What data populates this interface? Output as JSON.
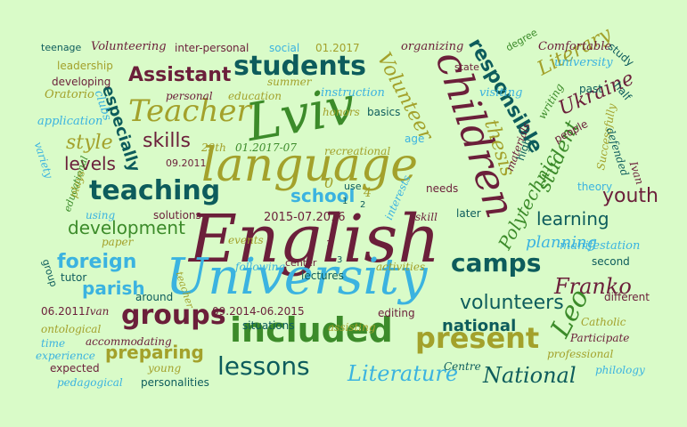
{
  "palette": {
    "background": "#d9fbc8",
    "maroon": "#6b1f3a",
    "olive": "#a3a12b",
    "green": "#3c8b2a",
    "teal": "#0d5c5c",
    "sky": "#3bb3e0"
  },
  "words": [
    {
      "text": "English",
      "color": "maroon"
    },
    {
      "text": "language",
      "color": "olive"
    },
    {
      "text": "University",
      "color": "sky"
    },
    {
      "text": "Lviv",
      "color": "green"
    },
    {
      "text": "children",
      "color": "maroon"
    },
    {
      "text": "included",
      "color": "green"
    },
    {
      "text": "Teacher",
      "color": "olive"
    },
    {
      "text": "students",
      "color": "teal"
    },
    {
      "text": "teaching",
      "color": "teal"
    },
    {
      "text": "present",
      "color": "olive"
    },
    {
      "text": "lessons",
      "color": "teal"
    },
    {
      "text": "groups",
      "color": "maroon"
    },
    {
      "text": "camps",
      "color": "teal"
    },
    {
      "text": "Assistant",
      "color": "maroon"
    },
    {
      "text": "Literature",
      "color": "sky"
    },
    {
      "text": "National",
      "color": "teal"
    },
    {
      "text": "responsible",
      "color": "teal"
    },
    {
      "text": "Volunteer",
      "color": "olive"
    },
    {
      "text": "Literary",
      "color": "olive"
    },
    {
      "text": "Ukraine",
      "color": "maroon"
    },
    {
      "text": "thesis",
      "color": "olive"
    },
    {
      "text": "student",
      "color": "green"
    },
    {
      "text": "Polytechnic",
      "color": "green"
    },
    {
      "text": "Franko",
      "color": "maroon"
    },
    {
      "text": "Leo",
      "color": "green"
    },
    {
      "text": "foreign",
      "color": "sky"
    },
    {
      "text": "development",
      "color": "green"
    },
    {
      "text": "volunteers",
      "color": "teal"
    },
    {
      "text": "national",
      "color": "teal"
    },
    {
      "text": "preparing",
      "color": "olive"
    },
    {
      "text": "learning",
      "color": "teal"
    },
    {
      "text": "planning",
      "color": "sky"
    },
    {
      "text": "youth",
      "color": "maroon"
    },
    {
      "text": "skills",
      "color": "maroon"
    },
    {
      "text": "especially",
      "color": "teal"
    },
    {
      "text": "style",
      "color": "olive"
    },
    {
      "text": "levels",
      "color": "maroon"
    },
    {
      "text": "parish",
      "color": "sky"
    },
    {
      "text": "school",
      "color": "sky"
    },
    {
      "text": "Volunteering",
      "color": "maroon"
    },
    {
      "text": "teenage",
      "color": "teal"
    },
    {
      "text": "inter-personal",
      "color": "maroon"
    },
    {
      "text": "social",
      "color": "sky"
    },
    {
      "text": "01.2017",
      "color": "olive"
    },
    {
      "text": "organizing",
      "color": "maroon"
    },
    {
      "text": "degree",
      "color": "green"
    },
    {
      "text": "Comfortable",
      "color": "maroon"
    },
    {
      "text": "study",
      "color": "teal"
    },
    {
      "text": "university",
      "color": "sky"
    },
    {
      "text": "leadership",
      "color": "olive"
    },
    {
      "text": "developing",
      "color": "maroon"
    },
    {
      "text": "summer",
      "color": "olive"
    },
    {
      "text": "state",
      "color": "maroon"
    },
    {
      "text": "Oratorio",
      "color": "olive"
    },
    {
      "text": "clubs",
      "color": "sky"
    },
    {
      "text": "personal",
      "color": "maroon"
    },
    {
      "text": "education",
      "color": "olive"
    },
    {
      "text": "instruction",
      "color": "sky"
    },
    {
      "text": "visiting",
      "color": "sky"
    },
    {
      "text": "past",
      "color": "teal"
    },
    {
      "text": "half",
      "color": "teal"
    },
    {
      "text": "application",
      "color": "sky"
    },
    {
      "text": "honors",
      "color": "olive"
    },
    {
      "text": "basics",
      "color": "teal"
    },
    {
      "text": "writing",
      "color": "green"
    },
    {
      "text": "people",
      "color": "maroon"
    },
    {
      "text": "Successfully",
      "color": "olive"
    },
    {
      "text": "defended",
      "color": "teal"
    },
    {
      "text": "Ivan",
      "color": "maroon"
    },
    {
      "text": "variety",
      "color": "sky"
    },
    {
      "text": "29th",
      "color": "olive"
    },
    {
      "text": "01.2017-07",
      "color": "green"
    },
    {
      "text": "recreational",
      "color": "olive"
    },
    {
      "text": "age",
      "color": "sky"
    },
    {
      "text": "09.2011",
      "color": "maroon"
    },
    {
      "text": "use",
      "color": "teal"
    },
    {
      "text": "materials",
      "color": "maroon"
    },
    {
      "text": "high",
      "color": "teal"
    },
    {
      "text": "theory",
      "color": "sky"
    },
    {
      "text": "educational",
      "color": "green"
    },
    {
      "text": "plays",
      "color": "olive"
    },
    {
      "text": "using",
      "color": "sky"
    },
    {
      "text": "solutions",
      "color": "maroon"
    },
    {
      "text": "needs",
      "color": "maroon"
    },
    {
      "text": "interests",
      "color": "sky"
    },
    {
      "text": "skill",
      "color": "maroon"
    },
    {
      "text": "later",
      "color": "teal"
    },
    {
      "text": "paper",
      "color": "olive"
    },
    {
      "text": "2015-07.2016",
      "color": "maroon"
    },
    {
      "text": "events",
      "color": "olive"
    },
    {
      "text": "manifestation",
      "color": "sky"
    },
    {
      "text": "second",
      "color": "teal"
    },
    {
      "text": "tutor",
      "color": "teal"
    },
    {
      "text": "following",
      "color": "sky"
    },
    {
      "text": "center",
      "color": "maroon"
    },
    {
      "text": "lectures",
      "color": "teal"
    },
    {
      "text": "activities",
      "color": "olive"
    },
    {
      "text": "group",
      "color": "teal"
    },
    {
      "text": "teacher",
      "color": "olive"
    },
    {
      "text": "around",
      "color": "teal"
    },
    {
      "text": "different",
      "color": "maroon"
    },
    {
      "text": "06.2011",
      "color": "maroon"
    },
    {
      "text": "Ivan",
      "color": "maroon"
    },
    {
      "text": "09.2014-06.2015",
      "color": "maroon"
    },
    {
      "text": "editing",
      "color": "maroon"
    },
    {
      "text": "Catholic",
      "color": "olive"
    },
    {
      "text": "ontological",
      "color": "olive"
    },
    {
      "text": "situations",
      "color": "teal"
    },
    {
      "text": "assisting",
      "color": "olive"
    },
    {
      "text": "Participate",
      "color": "maroon"
    },
    {
      "text": "time",
      "color": "sky"
    },
    {
      "text": "accommodating",
      "color": "maroon"
    },
    {
      "text": "experience",
      "color": "sky"
    },
    {
      "text": "professional",
      "color": "olive"
    },
    {
      "text": "expected",
      "color": "maroon"
    },
    {
      "text": "young",
      "color": "olive"
    },
    {
      "text": "Centre",
      "color": "teal"
    },
    {
      "text": "philology",
      "color": "sky"
    },
    {
      "text": "pedagogical",
      "color": "sky"
    },
    {
      "text": "personalities",
      "color": "teal"
    },
    {
      "text": "0",
      "color": "olive"
    },
    {
      "text": "1",
      "color": "teal"
    },
    {
      "text": "4",
      "color": "olive"
    },
    {
      "text": "2",
      "color": "teal"
    },
    {
      "text": "1",
      "color": "maroon"
    },
    {
      "text": "3",
      "color": "teal"
    }
  ]
}
